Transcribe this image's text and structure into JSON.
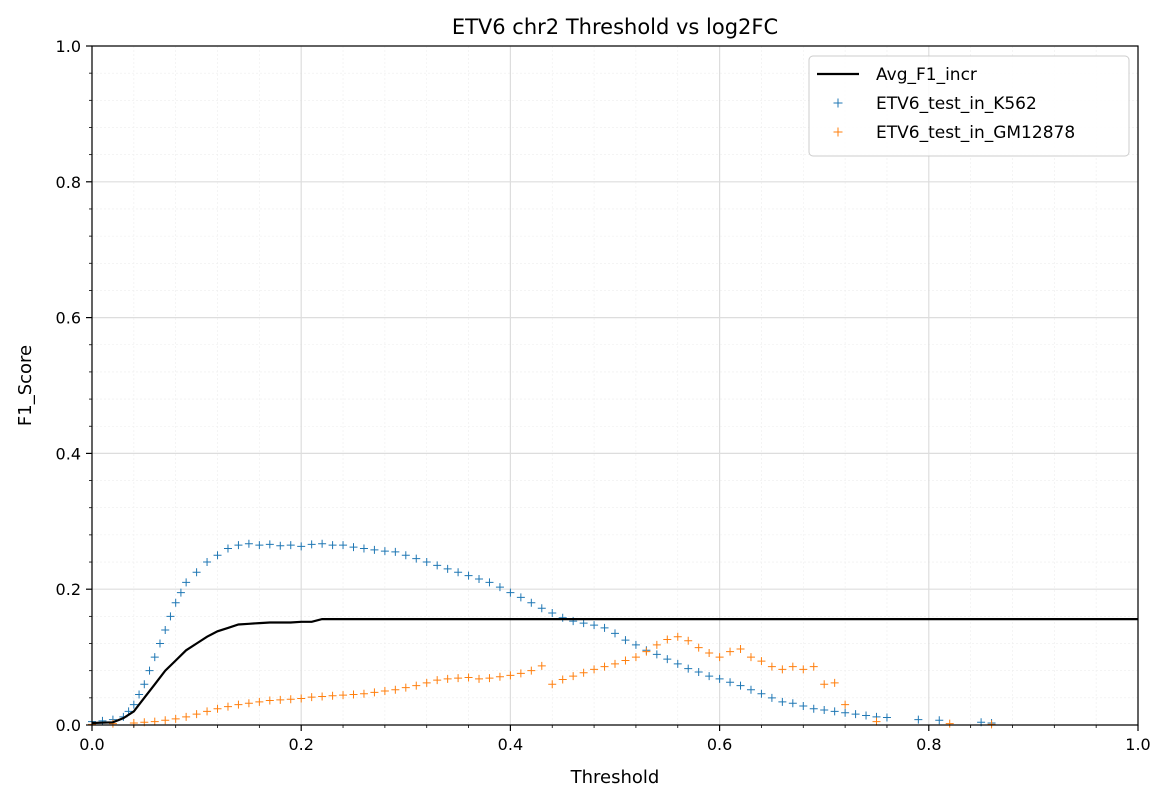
{
  "chart_data": {
    "type": "scatter",
    "title": "ETV6 chr2 Threshold vs log2FC",
    "xlabel": "Threshold",
    "ylabel": "F1_Score",
    "xlim": [
      0.0,
      1.0
    ],
    "ylim": [
      0.0,
      1.0
    ],
    "x_ticks": [
      0.0,
      0.2,
      0.4,
      0.6,
      0.8,
      1.0
    ],
    "x_tick_labels": [
      "0.0",
      "0.2",
      "0.4",
      "0.6",
      "0.8",
      "1.0"
    ],
    "y_ticks": [
      0.0,
      0.2,
      0.4,
      0.6,
      0.8,
      1.0
    ],
    "y_tick_labels": [
      "0.0",
      "0.2",
      "0.4",
      "0.6",
      "0.8",
      "1.0"
    ],
    "grid": true,
    "minor_grid": true,
    "legend_position": "top-right",
    "series": [
      {
        "name": "Avg_F1_incr",
        "kind": "line",
        "color": "#000000",
        "points": [
          [
            0.0,
            0.003
          ],
          [
            0.02,
            0.004
          ],
          [
            0.03,
            0.01
          ],
          [
            0.04,
            0.02
          ],
          [
            0.05,
            0.04
          ],
          [
            0.06,
            0.06
          ],
          [
            0.07,
            0.08
          ],
          [
            0.08,
            0.095
          ],
          [
            0.09,
            0.11
          ],
          [
            0.1,
            0.12
          ],
          [
            0.11,
            0.13
          ],
          [
            0.12,
            0.138
          ],
          [
            0.13,
            0.143
          ],
          [
            0.14,
            0.148
          ],
          [
            0.15,
            0.149
          ],
          [
            0.16,
            0.15
          ],
          [
            0.17,
            0.151
          ],
          [
            0.19,
            0.151
          ],
          [
            0.2,
            0.152
          ],
          [
            0.21,
            0.152
          ],
          [
            0.22,
            0.156
          ],
          [
            1.0,
            0.156
          ]
        ]
      },
      {
        "name": "ETV6_test_in_K562",
        "kind": "scatter",
        "marker": "+",
        "color": "#1f77b4",
        "points": [
          [
            0.0,
            0.005
          ],
          [
            0.01,
            0.006
          ],
          [
            0.02,
            0.008
          ],
          [
            0.03,
            0.012
          ],
          [
            0.035,
            0.02
          ],
          [
            0.04,
            0.03
          ],
          [
            0.045,
            0.045
          ],
          [
            0.05,
            0.06
          ],
          [
            0.055,
            0.08
          ],
          [
            0.06,
            0.1
          ],
          [
            0.065,
            0.12
          ],
          [
            0.07,
            0.14
          ],
          [
            0.075,
            0.16
          ],
          [
            0.08,
            0.18
          ],
          [
            0.085,
            0.195
          ],
          [
            0.09,
            0.21
          ],
          [
            0.1,
            0.225
          ],
          [
            0.11,
            0.24
          ],
          [
            0.12,
            0.25
          ],
          [
            0.13,
            0.26
          ],
          [
            0.14,
            0.265
          ],
          [
            0.15,
            0.267
          ],
          [
            0.16,
            0.265
          ],
          [
            0.17,
            0.266
          ],
          [
            0.18,
            0.264
          ],
          [
            0.19,
            0.265
          ],
          [
            0.2,
            0.263
          ],
          [
            0.21,
            0.266
          ],
          [
            0.22,
            0.267
          ],
          [
            0.23,
            0.265
          ],
          [
            0.24,
            0.265
          ],
          [
            0.25,
            0.262
          ],
          [
            0.26,
            0.26
          ],
          [
            0.27,
            0.258
          ],
          [
            0.28,
            0.256
          ],
          [
            0.29,
            0.255
          ],
          [
            0.3,
            0.25
          ],
          [
            0.31,
            0.245
          ],
          [
            0.32,
            0.24
          ],
          [
            0.33,
            0.235
          ],
          [
            0.34,
            0.23
          ],
          [
            0.35,
            0.225
          ],
          [
            0.36,
            0.22
          ],
          [
            0.37,
            0.215
          ],
          [
            0.38,
            0.21
          ],
          [
            0.39,
            0.203
          ],
          [
            0.4,
            0.195
          ],
          [
            0.41,
            0.188
          ],
          [
            0.42,
            0.18
          ],
          [
            0.43,
            0.172
          ],
          [
            0.44,
            0.165
          ],
          [
            0.45,
            0.158
          ],
          [
            0.46,
            0.153
          ],
          [
            0.47,
            0.15
          ],
          [
            0.48,
            0.147
          ],
          [
            0.49,
            0.143
          ],
          [
            0.5,
            0.135
          ],
          [
            0.51,
            0.125
          ],
          [
            0.52,
            0.118
          ],
          [
            0.53,
            0.11
          ],
          [
            0.54,
            0.104
          ],
          [
            0.55,
            0.097
          ],
          [
            0.56,
            0.09
          ],
          [
            0.57,
            0.083
          ],
          [
            0.58,
            0.078
          ],
          [
            0.59,
            0.072
          ],
          [
            0.6,
            0.068
          ],
          [
            0.61,
            0.063
          ],
          [
            0.62,
            0.058
          ],
          [
            0.63,
            0.052
          ],
          [
            0.64,
            0.046
          ],
          [
            0.65,
            0.04
          ],
          [
            0.66,
            0.034
          ],
          [
            0.67,
            0.032
          ],
          [
            0.68,
            0.028
          ],
          [
            0.69,
            0.024
          ],
          [
            0.7,
            0.022
          ],
          [
            0.71,
            0.02
          ],
          [
            0.72,
            0.018
          ],
          [
            0.73,
            0.016
          ],
          [
            0.74,
            0.014
          ],
          [
            0.75,
            0.012
          ],
          [
            0.76,
            0.011
          ],
          [
            0.79,
            0.008
          ],
          [
            0.81,
            0.007
          ],
          [
            0.85,
            0.004
          ],
          [
            0.86,
            0.003
          ]
        ]
      },
      {
        "name": "ETV6_test_in_GM12878",
        "kind": "scatter",
        "marker": "+",
        "color": "#ff7f0e",
        "points": [
          [
            0.0,
            0.001
          ],
          [
            0.02,
            0.002
          ],
          [
            0.04,
            0.003
          ],
          [
            0.05,
            0.004
          ],
          [
            0.06,
            0.005
          ],
          [
            0.07,
            0.007
          ],
          [
            0.08,
            0.009
          ],
          [
            0.09,
            0.012
          ],
          [
            0.1,
            0.016
          ],
          [
            0.11,
            0.02
          ],
          [
            0.12,
            0.024
          ],
          [
            0.13,
            0.027
          ],
          [
            0.14,
            0.03
          ],
          [
            0.15,
            0.032
          ],
          [
            0.16,
            0.034
          ],
          [
            0.17,
            0.036
          ],
          [
            0.18,
            0.037
          ],
          [
            0.19,
            0.038
          ],
          [
            0.2,
            0.039
          ],
          [
            0.21,
            0.041
          ],
          [
            0.22,
            0.042
          ],
          [
            0.23,
            0.043
          ],
          [
            0.24,
            0.044
          ],
          [
            0.25,
            0.045
          ],
          [
            0.26,
            0.046
          ],
          [
            0.27,
            0.048
          ],
          [
            0.28,
            0.05
          ],
          [
            0.29,
            0.052
          ],
          [
            0.3,
            0.055
          ],
          [
            0.31,
            0.058
          ],
          [
            0.32,
            0.062
          ],
          [
            0.33,
            0.066
          ],
          [
            0.34,
            0.068
          ],
          [
            0.35,
            0.069
          ],
          [
            0.36,
            0.07
          ],
          [
            0.37,
            0.068
          ],
          [
            0.38,
            0.069
          ],
          [
            0.39,
            0.071
          ],
          [
            0.4,
            0.073
          ],
          [
            0.41,
            0.076
          ],
          [
            0.42,
            0.08
          ],
          [
            0.43,
            0.087
          ],
          [
            0.44,
            0.06
          ],
          [
            0.45,
            0.067
          ],
          [
            0.46,
            0.072
          ],
          [
            0.47,
            0.077
          ],
          [
            0.48,
            0.082
          ],
          [
            0.49,
            0.086
          ],
          [
            0.5,
            0.09
          ],
          [
            0.51,
            0.095
          ],
          [
            0.52,
            0.1
          ],
          [
            0.53,
            0.108
          ],
          [
            0.54,
            0.118
          ],
          [
            0.55,
            0.126
          ],
          [
            0.56,
            0.13
          ],
          [
            0.57,
            0.124
          ],
          [
            0.58,
            0.114
          ],
          [
            0.59,
            0.106
          ],
          [
            0.6,
            0.1
          ],
          [
            0.61,
            0.108
          ],
          [
            0.62,
            0.112
          ],
          [
            0.63,
            0.1
          ],
          [
            0.64,
            0.094
          ],
          [
            0.65,
            0.086
          ],
          [
            0.66,
            0.082
          ],
          [
            0.67,
            0.086
          ],
          [
            0.68,
            0.082
          ],
          [
            0.69,
            0.086
          ],
          [
            0.7,
            0.06
          ],
          [
            0.71,
            0.062
          ],
          [
            0.72,
            0.03
          ],
          [
            0.75,
            0.005
          ],
          [
            0.82,
            0.002
          ],
          [
            0.86,
            0.001
          ]
        ]
      }
    ]
  }
}
